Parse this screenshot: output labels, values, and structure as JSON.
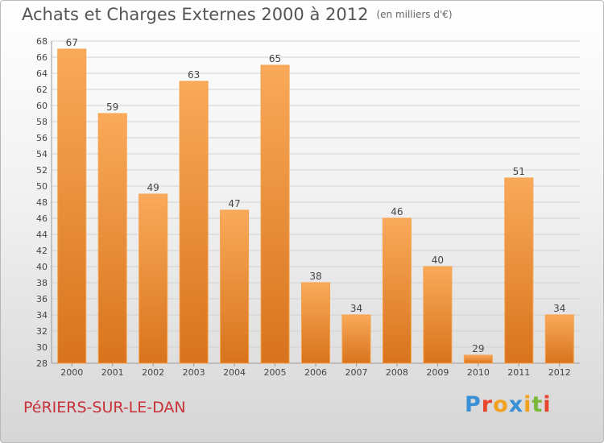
{
  "header": {
    "title": "Achats et Charges Externes 2000 à 2012",
    "subtitle": "(en milliers d'€)"
  },
  "footer": {
    "commune": "PéRIERS-SUR-LE-DAN",
    "logo": "Proxiti",
    "logo_colors": [
      "#3a8fd6",
      "#e8462c",
      "#f4a020",
      "#3a8fd6",
      "#f4a020",
      "#7ab83a",
      "#e8462c"
    ]
  },
  "colors": {
    "bar_light": "#f9aa5a",
    "bar_dark": "#d8731c",
    "grid": "#d2d2d2",
    "axis": "#999999",
    "label": "#444444"
  },
  "chart_data": {
    "type": "bar",
    "categories": [
      "2000",
      "2001",
      "2002",
      "2003",
      "2004",
      "2005",
      "2006",
      "2007",
      "2008",
      "2009",
      "2010",
      "2011",
      "2012"
    ],
    "values": [
      67,
      59,
      49,
      63,
      47,
      65,
      38,
      34,
      46,
      40,
      29,
      51,
      34
    ],
    "ylim": [
      28,
      68
    ],
    "ytick_step": 2,
    "title": "Achats et Charges Externes 2000 à 2012",
    "ylabel": "",
    "xlabel": "",
    "grid": true
  }
}
